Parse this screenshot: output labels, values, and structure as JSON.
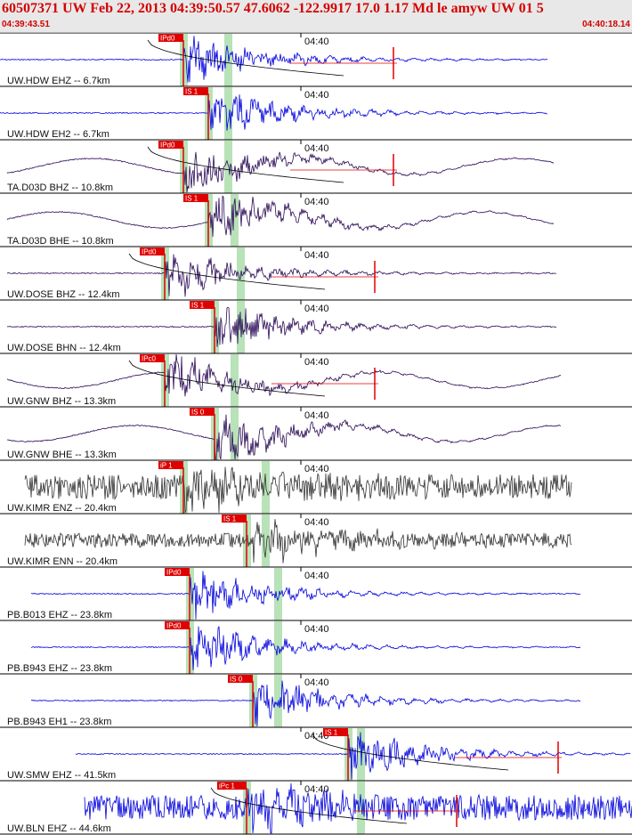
{
  "header": {
    "title": "60507371 UW Feb 22, 2013 04:39:50.57    47.6062 -122.9917 17.0 1.17 Md le amyw UW 01    5",
    "start_time": "04:39:43.51",
    "end_time": "04:40:18.14",
    "title_color": "#d40000"
  },
  "time_tick_label": "04:40",
  "colors": {
    "blue": "#0000dd",
    "purple": "#2a0a55",
    "gray": "#333333",
    "pick": "#e00000",
    "highlight": "#b8e2b8",
    "divider": "#000000",
    "travel_curve": "#000000"
  },
  "traces": [
    {
      "label": "UW.HDW EHZ -- 6.7km",
      "pick": "IPd0",
      "color": "blue",
      "style": "quiet",
      "pick_frac": 0.29,
      "s_frac": 0.36,
      "has_curve": true
    },
    {
      "label": "UW.HDW EH2 -- 6.7km",
      "pick": "IS 1",
      "color": "blue",
      "style": "quiet",
      "pick_frac": 0.33,
      "s_frac": 0.36
    },
    {
      "label": "TA.D03D BHZ -- 10.8km",
      "pick": "IPd0",
      "color": "purple",
      "style": "swell",
      "pick_frac": 0.29,
      "s_frac": 0.36,
      "has_curve": true
    },
    {
      "label": "TA.D03D BHE -- 10.8km",
      "pick": "IS 1",
      "color": "purple",
      "style": "swell",
      "pick_frac": 0.33,
      "s_frac": 0.37
    },
    {
      "label": "UW.DOSE BHZ -- 12.4km",
      "pick": "IPd0",
      "color": "purple",
      "style": "quiet",
      "pick_frac": 0.26,
      "s_frac": 0.38,
      "has_curve": true
    },
    {
      "label": "UW.DOSE BHN -- 12.4km",
      "pick": "IS 1",
      "color": "purple",
      "style": "quiet",
      "pick_frac": 0.34,
      "s_frac": 0.38
    },
    {
      "label": "UW.GNW BHZ -- 13.3km",
      "pick": "IPc0",
      "color": "purple",
      "style": "swell",
      "pick_frac": 0.26,
      "s_frac": 0.37,
      "has_curve": true
    },
    {
      "label": "UW.GNW BHE -- 13.3km",
      "pick": "IS 0",
      "color": "purple",
      "style": "swell",
      "pick_frac": 0.34,
      "s_frac": 0.37
    },
    {
      "label": "UW.KIMR ENZ -- 20.4km",
      "pick": "iP 1",
      "color": "gray",
      "style": "noise",
      "pick_frac": 0.29,
      "s_frac": 0.42
    },
    {
      "label": "UW.KIMR ENN -- 20.4km",
      "pick": "IS 1",
      "color": "gray",
      "style": "noisehalf",
      "pick_frac": 0.39,
      "s_frac": 0.42
    },
    {
      "label": "PB.B013 EHZ -- 23.8km",
      "pick": "IPd0",
      "color": "blue",
      "style": "quiet",
      "pick_frac": 0.3,
      "s_frac": 0.44
    },
    {
      "label": "PB.B943 EHZ -- 23.8km",
      "pick": "IPd0",
      "color": "blue",
      "style": "quiet",
      "pick_frac": 0.3,
      "s_frac": 0.44
    },
    {
      "label": "PB.B943 EH1 -- 23.8km",
      "pick": "IS 0",
      "color": "blue",
      "style": "quiet",
      "pick_frac": 0.4,
      "s_frac": 0.44
    },
    {
      "label": "UW.SMW EHZ -- 41.5km",
      "pick": "IS 1",
      "color": "blue",
      "style": "quiet",
      "pick_frac": 0.55,
      "s_frac": 0.57,
      "has_curve": true
    },
    {
      "label": "UW.BLN EHZ -- 44.6km",
      "pick": "iPc 1",
      "color": "blue",
      "style": "noise",
      "pick_frac": 0.39,
      "s_frac": 0.57,
      "has_curve": true
    }
  ]
}
